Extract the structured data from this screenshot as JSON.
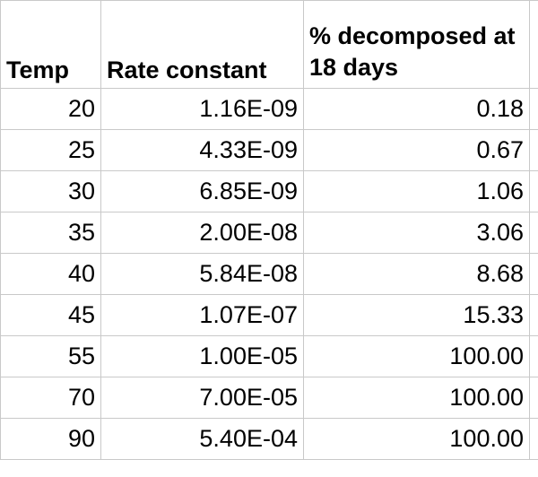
{
  "headers": {
    "temp": "Temp",
    "rate": "Rate constant",
    "pct": "% decomposed at 18 days"
  },
  "rows": [
    {
      "temp": "20",
      "rate": "1.16E-09",
      "pct": "0.18"
    },
    {
      "temp": "25",
      "rate": "4.33E-09",
      "pct": "0.67"
    },
    {
      "temp": "30",
      "rate": "6.85E-09",
      "pct": "1.06"
    },
    {
      "temp": "35",
      "rate": "2.00E-08",
      "pct": "3.06"
    },
    {
      "temp": "40",
      "rate": "5.84E-08",
      "pct": "8.68"
    },
    {
      "temp": "45",
      "rate": "1.07E-07",
      "pct": "15.33"
    },
    {
      "temp": "55",
      "rate": "1.00E-05",
      "pct": "100.00"
    },
    {
      "temp": "70",
      "rate": "7.00E-05",
      "pct": "100.00"
    },
    {
      "temp": "90",
      "rate": "5.40E-04",
      "pct": "100.00"
    }
  ],
  "colors": {
    "gridline": "#c9c9c9",
    "text": "#000000",
    "background": "#ffffff"
  }
}
